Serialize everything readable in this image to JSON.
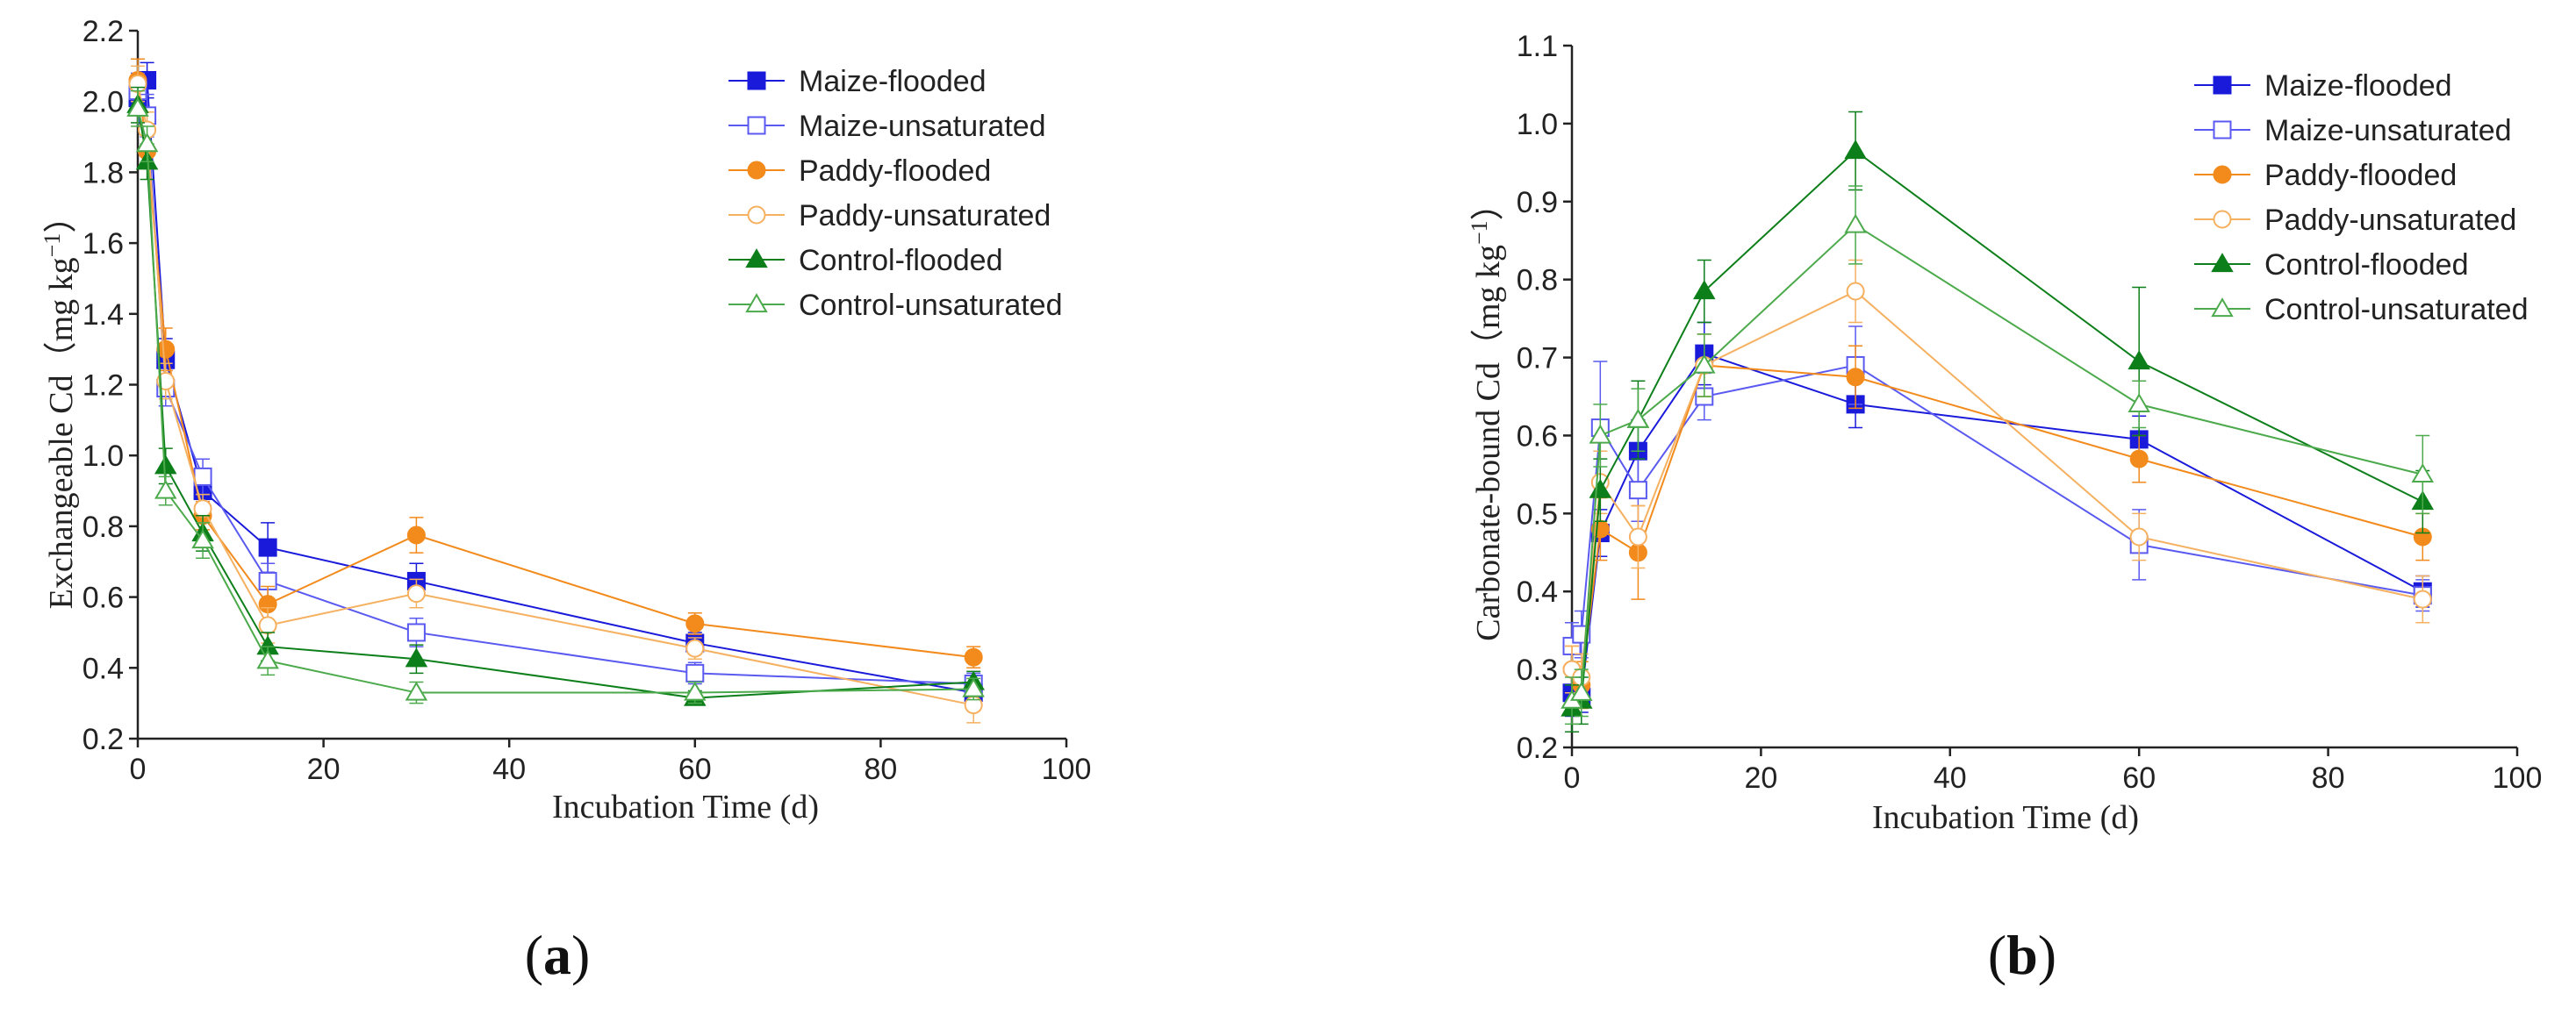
{
  "panels": [
    {
      "label_open": "(",
      "label_letter": "a",
      "label_close": ")",
      "chart_data": {
        "type": "line",
        "xlabel": "Incubation Time (d)",
        "ylabel_main": "Exchangeable Cd（mg kg",
        "ylabel_sup": "−1",
        "ylabel_end": "）",
        "xlim": [
          0,
          100
        ],
        "ylim": [
          0.2,
          2.2
        ],
        "xticks": [
          0,
          20,
          40,
          60,
          80,
          100
        ],
        "yticks": [
          0.2,
          0.4,
          0.6,
          0.8,
          1.0,
          1.2,
          1.4,
          1.6,
          1.8,
          2.0,
          2.2
        ],
        "ytick_labels": [
          "0.2",
          "0.4",
          "0.6",
          "0.8",
          "1.0",
          "1.2",
          "1.4",
          "1.6",
          "1.8",
          "2.0",
          "2.2"
        ],
        "xtick_labels": [
          "0",
          "20",
          "40",
          "60",
          "80",
          "100"
        ],
        "x": [
          0,
          1,
          3,
          7,
          14,
          30,
          60,
          90
        ],
        "series": [
          {
            "name": "Maize-flooded",
            "color": "#1a1adb",
            "marker": "square",
            "filled": true,
            "values": [
              2.01,
              2.06,
              1.27,
              0.9,
              0.74,
              0.645,
              0.47,
              0.33
            ],
            "errors": [
              0.05,
              0.05,
              0.06,
              0.04,
              0.07,
              0.05,
              0.03,
              0.03
            ]
          },
          {
            "name": "Maize-unsaturated",
            "color": "#5a5af0",
            "marker": "square",
            "filled": false,
            "values": [
              2.03,
              1.96,
              1.19,
              0.94,
              0.645,
              0.5,
              0.385,
              0.355
            ],
            "errors": [
              0.05,
              0.06,
              0.05,
              0.05,
              0.05,
              0.04,
              0.03,
              0.03
            ]
          },
          {
            "name": "Paddy-flooded",
            "color": "#f28a1c",
            "marker": "circle",
            "filled": true,
            "values": [
              2.06,
              1.86,
              1.3,
              0.83,
              0.58,
              0.775,
              0.525,
              0.43
            ],
            "errors": [
              0.06,
              0.05,
              0.06,
              0.04,
              0.05,
              0.05,
              0.03,
              0.03
            ]
          },
          {
            "name": "Paddy-unsaturated",
            "color": "#f5b060",
            "marker": "circle",
            "filled": false,
            "values": [
              2.05,
              1.92,
              1.21,
              0.85,
              0.52,
              0.61,
              0.455,
              0.295
            ],
            "errors": [
              0.05,
              0.05,
              0.05,
              0.04,
              0.05,
              0.04,
              0.03,
              0.05
            ]
          },
          {
            "name": "Control-flooded",
            "color": "#0d7f1a",
            "marker": "triangle",
            "filled": true,
            "values": [
              1.99,
              1.83,
              0.97,
              0.78,
              0.46,
              0.425,
              0.315,
              0.36
            ],
            "errors": [
              0.05,
              0.05,
              0.05,
              0.05,
              0.04,
              0.04,
              0.02,
              0.03
            ]
          },
          {
            "name": "Control-unsaturated",
            "color": "#4caa4c",
            "marker": "triangle",
            "filled": false,
            "values": [
              1.98,
              1.88,
              0.9,
              0.76,
              0.42,
              0.33,
              0.33,
              0.34
            ],
            "errors": [
              0.05,
              0.05,
              0.04,
              0.05,
              0.04,
              0.03,
              0.03,
              0.03
            ]
          }
        ]
      }
    },
    {
      "label_open": "(",
      "label_letter": "b",
      "label_close": ")",
      "chart_data": {
        "type": "line",
        "xlabel": "Incubation Time (d)",
        "ylabel_main": "Carbonate-bound Cd（mg kg",
        "ylabel_sup": "−1",
        "ylabel_end": "）",
        "xlim": [
          0,
          100
        ],
        "ylim": [
          0.2,
          1.1
        ],
        "xticks": [
          0,
          20,
          40,
          60,
          80,
          100
        ],
        "yticks": [
          0.2,
          0.3,
          0.4,
          0.5,
          0.6,
          0.7,
          0.8,
          0.9,
          1.0,
          1.1
        ],
        "ytick_labels": [
          "0.2",
          "0.3",
          "0.4",
          "0.5",
          "0.6",
          "0.7",
          "0.8",
          "0.9",
          "1.0",
          "1.1"
        ],
        "xtick_labels": [
          "0",
          "20",
          "40",
          "60",
          "80",
          "100"
        ],
        "x": [
          0,
          1,
          3,
          7,
          14,
          30,
          60,
          90
        ],
        "series": [
          {
            "name": "Maize-flooded",
            "color": "#1a1adb",
            "marker": "square",
            "filled": true,
            "values": [
              0.27,
              0.265,
              0.475,
              0.58,
              0.705,
              0.64,
              0.595,
              0.4
            ],
            "errors": [
              0.03,
              0.02,
              0.03,
              0.04,
              0.04,
              0.03,
              0.03,
              0.02
            ]
          },
          {
            "name": "Maize-unsaturated",
            "color": "#5a5af0",
            "marker": "square",
            "filled": false,
            "values": [
              0.33,
              0.345,
              0.61,
              0.53,
              0.65,
              0.69,
              0.46,
              0.395
            ],
            "errors": [
              0.03,
              0.03,
              0.085,
              0.04,
              0.03,
              0.05,
              0.045,
              0.02
            ]
          },
          {
            "name": "Paddy-flooded",
            "color": "#f28a1c",
            "marker": "circle",
            "filled": true,
            "values": [
              0.3,
              0.28,
              0.48,
              0.45,
              0.69,
              0.675,
              0.57,
              0.47
            ],
            "errors": [
              0.03,
              0.03,
              0.04,
              0.06,
              0.04,
              0.04,
              0.03,
              0.03
            ]
          },
          {
            "name": "Paddy-unsaturated",
            "color": "#f5b060",
            "marker": "circle",
            "filled": false,
            "values": [
              0.3,
              0.29,
              0.54,
              0.47,
              0.69,
              0.785,
              0.47,
              0.39
            ],
            "errors": [
              0.03,
              0.03,
              0.04,
              0.04,
              0.04,
              0.04,
              0.03,
              0.03
            ]
          },
          {
            "name": "Control-flooded",
            "color": "#0d7f1a",
            "marker": "triangle",
            "filled": true,
            "values": [
              0.25,
              0.26,
              0.53,
              0.62,
              0.785,
              0.965,
              0.695,
              0.515
            ],
            "errors": [
              0.03,
              0.03,
              0.04,
              0.05,
              0.04,
              0.05,
              0.095,
              0.04
            ]
          },
          {
            "name": "Control-unsaturated",
            "color": "#4caa4c",
            "marker": "triangle",
            "filled": false,
            "values": [
              0.26,
              0.27,
              0.6,
              0.62,
              0.69,
              0.87,
              0.64,
              0.55
            ],
            "errors": [
              0.03,
              0.03,
              0.04,
              0.04,
              0.04,
              0.05,
              0.03,
              0.05
            ]
          }
        ]
      }
    }
  ]
}
